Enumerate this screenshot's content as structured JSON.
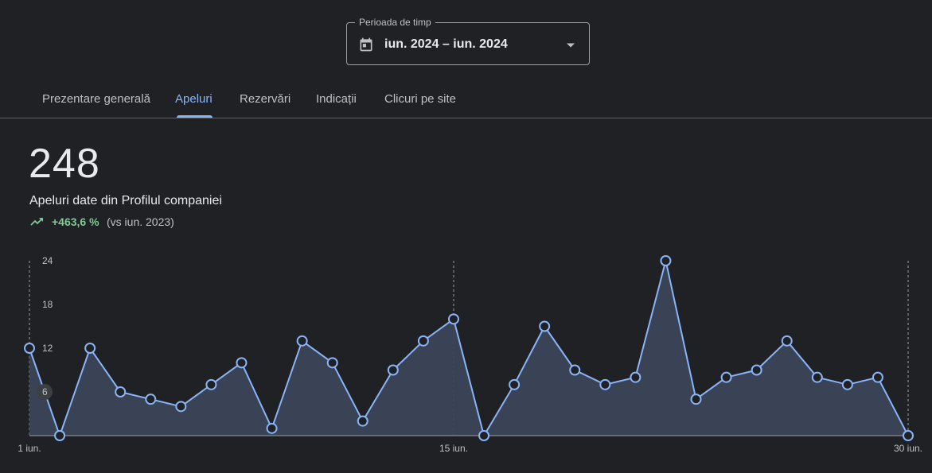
{
  "period": {
    "legend": "Perioada de timp",
    "value": "iun. 2024 – iun. 2024",
    "icon": "calendar-icon"
  },
  "tabs": [
    {
      "label": "Prezentare generală",
      "active": false
    },
    {
      "label": "Apeluri",
      "active": true
    },
    {
      "label": "Rezervări",
      "active": false
    },
    {
      "label": "Indicații",
      "active": false
    },
    {
      "label": "Clicuri pe site",
      "active": false
    }
  ],
  "metric": {
    "total": "248",
    "label": "Apeluri date din Profilul companiei",
    "change": "+463,6 %",
    "comparison": "(vs iun. 2023)",
    "trend_icon": "trending-up-icon"
  },
  "colors": {
    "background": "#202124",
    "accent": "#8ab4f8",
    "positive": "#81c995",
    "area_fill": "#3c4658"
  },
  "chart_data": {
    "type": "area",
    "x": [
      1,
      2,
      3,
      4,
      5,
      6,
      7,
      8,
      9,
      10,
      11,
      12,
      13,
      14,
      15,
      16,
      17,
      18,
      19,
      20,
      21,
      22,
      23,
      24,
      25,
      26,
      27,
      28,
      29,
      30
    ],
    "values": [
      12,
      0,
      12,
      6,
      5,
      4,
      7,
      10,
      1,
      13,
      10,
      2,
      9,
      13,
      16,
      0,
      7,
      15,
      9,
      7,
      8,
      24,
      5,
      8,
      9,
      13,
      8,
      7,
      8,
      0
    ],
    "y_ticks": [
      "24",
      "18",
      "12",
      "6"
    ],
    "y_tick_values": [
      24,
      18,
      12,
      6
    ],
    "x_ticks": [
      {
        "day": 1,
        "label": "1 iun."
      },
      {
        "day": 15,
        "label": "15 iun."
      },
      {
        "day": 30,
        "label": "30 iun."
      }
    ],
    "ylim": [
      0,
      24
    ],
    "highlighted_tick": "6"
  }
}
